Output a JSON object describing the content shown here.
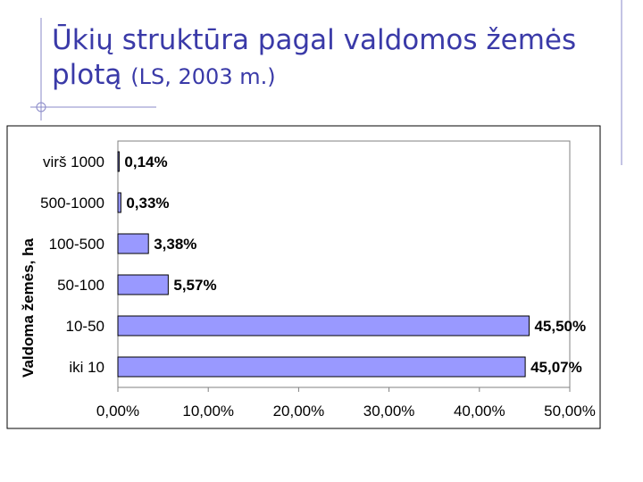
{
  "slide": {
    "title_main": "Ūkių struktūra pagal valdomos žemės",
    "title_line2": "plotą",
    "title_paren": "(LS, 2003 m.)"
  },
  "colors": {
    "title": "#3a3aa8",
    "bar_fill": "#9999ff",
    "bar_stroke": "#000000",
    "decor_line": "#8a8ac8"
  },
  "chart_data": {
    "type": "bar",
    "orientation": "horizontal",
    "title": "",
    "xlabel": "",
    "ylabel": "Valdoma žemės, ha",
    "categories": [
      "virš 1000",
      "500-1000",
      "100-500",
      "50-100",
      "10-50",
      "iki 10"
    ],
    "values": [
      0.14,
      0.33,
      3.38,
      5.57,
      45.5,
      45.07
    ],
    "data_labels": [
      "0,14%",
      "0,33%",
      "3,38%",
      "5,57%",
      "45,50%",
      "45,07%"
    ],
    "xlim": [
      0,
      50
    ],
    "xticks": [
      0,
      10,
      20,
      30,
      40,
      50
    ],
    "xtick_labels": [
      "0,00%",
      "10,00%",
      "20,00%",
      "30,00%",
      "40,00%",
      "50,00%"
    ],
    "grid": false,
    "legend": "none"
  }
}
